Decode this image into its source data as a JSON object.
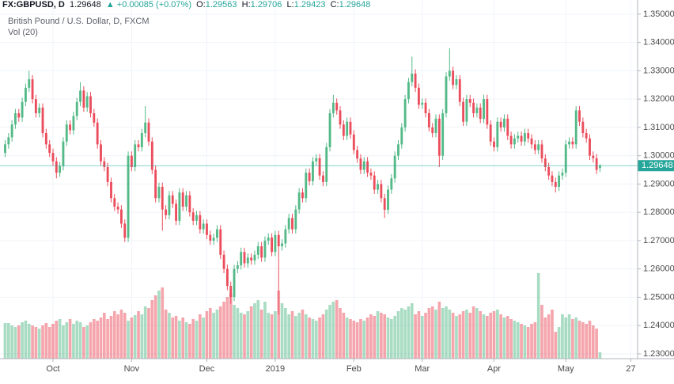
{
  "chart_data": {
    "type": "candlestick",
    "symbol": "FX:GBPUSD, D",
    "change": "▲ +0.00085 (+0.07%)",
    "ohlc_labels": [
      "O:",
      "H:",
      "L:",
      "C:"
    ],
    "subtitle": "British Pound / U.S. Dollar, D, FXCM",
    "volume_label": "Vol (20)",
    "up_color": "#53b987",
    "down_color": "#eb4d5c",
    "grid": true,
    "xlim": [
      -1.5,
      185
    ],
    "xticks": [
      {
        "value": 14,
        "label": "Oct"
      },
      {
        "value": 37,
        "label": "Nov"
      },
      {
        "value": 59,
        "label": "Dec"
      },
      {
        "value": 79,
        "label": "2019"
      },
      {
        "value": 102,
        "label": "Feb"
      },
      {
        "value": 122,
        "label": "Mar"
      },
      {
        "value": 143,
        "label": "Apr"
      },
      {
        "value": 164,
        "label": "May"
      },
      {
        "value": 183,
        "label": "27"
      }
    ],
    "ylim": [
      1.2283,
      1.355
    ],
    "yticks": [
      {
        "value": 1.23,
        "label": "1.23000"
      },
      {
        "value": 1.24,
        "label": "1.24000"
      },
      {
        "value": 1.25,
        "label": "1.25000"
      },
      {
        "value": 1.26,
        "label": "1.26000"
      },
      {
        "value": 1.27,
        "label": "1.27000"
      },
      {
        "value": 1.28,
        "label": "1.28000"
      },
      {
        "value": 1.29,
        "label": "1.29000"
      },
      {
        "value": 1.3,
        "label": "1.30000"
      },
      {
        "value": 1.31,
        "label": "1.31000"
      },
      {
        "value": 1.32,
        "label": "1.32000"
      },
      {
        "value": 1.33,
        "label": "1.33000"
      },
      {
        "value": 1.34,
        "label": "1.34000"
      },
      {
        "value": 1.35,
        "label": "1.35000"
      }
    ],
    "open": [
      1.301,
      1.304,
      1.3065,
      1.311,
      1.315,
      1.3135,
      1.319,
      1.324,
      1.327,
      1.32,
      1.315,
      1.317,
      1.308,
      1.304,
      1.301,
      1.298,
      1.294,
      1.2963,
      1.305,
      1.311,
      1.309,
      1.314,
      1.319,
      1.323,
      1.317,
      1.321,
      1.315,
      1.3117,
      1.304,
      1.298,
      1.296,
      1.2907,
      1.285,
      1.282,
      1.281,
      1.276,
      1.271,
      1.3,
      1.296,
      1.304,
      1.303,
      1.308,
      1.3117,
      1.305,
      1.295,
      1.285,
      1.289,
      1.281,
      1.279,
      1.286,
      1.283,
      1.277,
      1.287,
      1.282,
      1.286,
      1.28,
      1.277,
      1.279,
      1.274,
      1.276,
      1.272,
      1.27,
      1.271,
      1.274,
      1.265,
      1.26,
      1.254,
      1.2501,
      1.26,
      1.2613,
      1.266,
      1.262,
      1.264,
      1.263,
      1.265,
      1.268,
      1.264,
      1.27,
      1.2711,
      1.266,
      1.272,
      1.268,
      1.269,
      1.274,
      1.278,
      1.274,
      1.281,
      1.287,
      1.285,
      1.294,
      1.291,
      1.298,
      1.2991,
      1.293,
      1.2907,
      1.303,
      1.315,
      1.3187,
      1.316,
      1.311,
      1.307,
      1.312,
      1.3075,
      1.302,
      1.299,
      1.295,
      1.298,
      1.294,
      1.293,
      1.288,
      1.29,
      1.285,
      1.2809,
      1.288,
      1.292,
      1.3,
      1.304,
      1.31,
      1.32,
      1.326,
      1.329,
      1.324,
      1.318,
      1.3187,
      1.315,
      1.31,
      1.308,
      1.3131,
      1.3,
      1.315,
      1.328,
      1.33,
      1.325,
      1.327,
      1.319,
      1.312,
      1.32,
      1.3187,
      1.315,
      1.317,
      1.313,
      1.32,
      1.311,
      1.305,
      1.303,
      1.312,
      1.31,
      1.3131,
      1.307,
      1.304,
      1.3061,
      1.307,
      1.305,
      1.308,
      1.3061,
      1.304,
      1.302,
      1.304,
      1.299,
      1.296,
      1.293,
      1.2907,
      1.289,
      1.293,
      1.294,
      1.304,
      1.305,
      1.304,
      1.316,
      1.312,
      1.308,
      1.3061,
      1.3,
      1.2991,
      1.29563
    ],
    "high": [
      1.3055,
      1.308,
      1.3125,
      1.3165,
      1.3165,
      1.3205,
      1.3255,
      1.33,
      1.3285,
      1.3215,
      1.3185,
      1.3185,
      1.3095,
      1.3055,
      1.3025,
      1.2995,
      1.2978,
      1.3065,
      1.3125,
      1.3125,
      1.3155,
      1.3205,
      1.326,
      1.3245,
      1.3225,
      1.3225,
      1.3165,
      1.3132,
      1.3055,
      1.2995,
      1.2975,
      1.2922,
      1.2865,
      1.2835,
      1.2825,
      1.2775,
      1.3015,
      1.3015,
      1.3055,
      1.3055,
      1.3095,
      1.3175,
      1.3132,
      1.3065,
      1.2965,
      1.2905,
      1.2905,
      1.2825,
      1.2875,
      1.2875,
      1.2845,
      1.2885,
      1.2885,
      1.2875,
      1.2875,
      1.2815,
      1.2805,
      1.2805,
      1.2775,
      1.2775,
      1.2735,
      1.2725,
      1.2755,
      1.2755,
      1.2665,
      1.2615,
      1.2555,
      1.2615,
      1.2628,
      1.2675,
      1.2675,
      1.2655,
      1.2655,
      1.2665,
      1.2695,
      1.2695,
      1.2715,
      1.2726,
      1.2726,
      1.2735,
      1.2735,
      1.2705,
      1.2755,
      1.2795,
      1.2795,
      1.2825,
      1.2885,
      1.2885,
      1.2955,
      1.2955,
      1.2995,
      1.3006,
      1.3006,
      1.2945,
      1.3045,
      1.3165,
      1.3215,
      1.3202,
      1.3175,
      1.3125,
      1.3135,
      1.3135,
      1.309,
      1.3035,
      1.3005,
      1.2995,
      1.2995,
      1.2955,
      1.2945,
      1.2915,
      1.2915,
      1.2865,
      1.2895,
      1.2935,
      1.3015,
      1.3055,
      1.3115,
      1.3215,
      1.3275,
      1.335,
      1.3305,
      1.3255,
      1.3202,
      1.3202,
      1.3165,
      1.3115,
      1.3146,
      1.3146,
      1.3165,
      1.3295,
      1.338,
      1.3315,
      1.3285,
      1.3285,
      1.3205,
      1.3215,
      1.3215,
      1.3202,
      1.3185,
      1.3185,
      1.3215,
      1.3215,
      1.3125,
      1.3065,
      1.3135,
      1.3135,
      1.3146,
      1.3146,
      1.3085,
      1.3076,
      1.3085,
      1.3085,
      1.3095,
      1.3095,
      1.3076,
      1.3055,
      1.3055,
      1.3055,
      1.3005,
      1.2975,
      1.2945,
      1.2922,
      1.2945,
      1.2955,
      1.3055,
      1.3065,
      1.3065,
      1.3175,
      1.3175,
      1.3135,
      1.3095,
      1.3076,
      1.3015,
      1.3006,
      1.29706
    ],
    "low": [
      1.2995,
      1.3025,
      1.305,
      1.3095,
      1.312,
      1.312,
      1.3175,
      1.3225,
      1.3185,
      1.3135,
      1.3135,
      1.3065,
      1.3025,
      1.2995,
      1.2965,
      1.292,
      1.2925,
      1.2948,
      1.3035,
      1.3075,
      1.3075,
      1.3125,
      1.3175,
      1.3155,
      1.3155,
      1.3135,
      1.3102,
      1.3025,
      1.2965,
      1.2945,
      1.2892,
      1.2835,
      1.2805,
      1.2795,
      1.2745,
      1.2695,
      1.2695,
      1.2945,
      1.2945,
      1.3015,
      1.3015,
      1.3065,
      1.3035,
      1.2935,
      1.2835,
      1.2835,
      1.2735,
      1.2775,
      1.2775,
      1.2815,
      1.2755,
      1.2755,
      1.2805,
      1.2805,
      1.2785,
      1.2755,
      1.2755,
      1.2725,
      1.2725,
      1.2705,
      1.2685,
      1.2685,
      1.2695,
      1.2635,
      1.2585,
      1.2525,
      1.2477,
      1.2486,
      1.2585,
      1.2598,
      1.2605,
      1.2605,
      1.2615,
      1.2615,
      1.2635,
      1.2625,
      1.2625,
      1.2685,
      1.2645,
      1.2645,
      1.2438,
      1.2665,
      1.2675,
      1.2725,
      1.2725,
      1.2725,
      1.2795,
      1.2835,
      1.2835,
      1.2895,
      1.2895,
      1.2965,
      1.2915,
      1.2892,
      1.2892,
      1.3015,
      1.3135,
      1.3145,
      1.3095,
      1.3055,
      1.3055,
      1.306,
      1.3005,
      1.2975,
      1.2935,
      1.2935,
      1.2925,
      1.2915,
      1.2865,
      1.2865,
      1.2835,
      1.278,
      1.2794,
      1.2865,
      1.2905,
      1.2985,
      1.3025,
      1.3085,
      1.3185,
      1.3245,
      1.3225,
      1.3165,
      1.3165,
      1.3135,
      1.3085,
      1.3065,
      1.3065,
      1.296,
      1.2985,
      1.3135,
      1.3265,
      1.3235,
      1.3235,
      1.3175,
      1.3105,
      1.3105,
      1.3172,
      1.3135,
      1.3135,
      1.3115,
      1.3115,
      1.3095,
      1.3035,
      1.3015,
      1.3015,
      1.3085,
      1.3085,
      1.3055,
      1.3025,
      1.3025,
      1.3046,
      1.3035,
      1.3035,
      1.3046,
      1.3025,
      1.3005,
      1.3005,
      1.2975,
      1.2945,
      1.2915,
      1.2892,
      1.287,
      1.2875,
      1.2915,
      1.2925,
      1.3025,
      1.3025,
      1.3025,
      1.3105,
      1.3065,
      1.3046,
      1.2985,
      1.2976,
      1.2935,
      1.29423
    ],
    "close": [
      1.304,
      1.3065,
      1.311,
      1.315,
      1.3135,
      1.319,
      1.324,
      1.327,
      1.32,
      1.315,
      1.317,
      1.308,
      1.304,
      1.301,
      1.298,
      1.294,
      1.2963,
      1.305,
      1.311,
      1.309,
      1.314,
      1.319,
      1.323,
      1.317,
      1.321,
      1.315,
      1.3117,
      1.304,
      1.298,
      1.296,
      1.2907,
      1.285,
      1.282,
      1.281,
      1.276,
      1.271,
      1.3,
      1.296,
      1.304,
      1.303,
      1.308,
      1.3117,
      1.305,
      1.295,
      1.285,
      1.289,
      1.281,
      1.279,
      1.286,
      1.283,
      1.277,
      1.287,
      1.282,
      1.286,
      1.28,
      1.277,
      1.279,
      1.274,
      1.276,
      1.272,
      1.27,
      1.271,
      1.274,
      1.265,
      1.26,
      1.254,
      1.2501,
      1.26,
      1.2613,
      1.266,
      1.262,
      1.264,
      1.263,
      1.265,
      1.268,
      1.264,
      1.27,
      1.2711,
      1.266,
      1.272,
      1.268,
      1.269,
      1.274,
      1.278,
      1.274,
      1.281,
      1.287,
      1.285,
      1.294,
      1.291,
      1.298,
      1.2991,
      1.293,
      1.2907,
      1.303,
      1.315,
      1.3187,
      1.316,
      1.311,
      1.307,
      1.312,
      1.3075,
      1.302,
      1.299,
      1.295,
      1.298,
      1.294,
      1.293,
      1.288,
      1.29,
      1.285,
      1.2809,
      1.288,
      1.292,
      1.3,
      1.304,
      1.31,
      1.32,
      1.326,
      1.329,
      1.324,
      1.318,
      1.3187,
      1.315,
      1.31,
      1.308,
      1.3131,
      1.3,
      1.315,
      1.328,
      1.33,
      1.325,
      1.327,
      1.319,
      1.312,
      1.32,
      1.3187,
      1.315,
      1.317,
      1.313,
      1.32,
      1.311,
      1.305,
      1.303,
      1.312,
      1.31,
      1.3131,
      1.307,
      1.304,
      1.3061,
      1.307,
      1.305,
      1.308,
      1.3061,
      1.304,
      1.302,
      1.304,
      1.299,
      1.296,
      1.293,
      1.2907,
      1.289,
      1.293,
      1.294,
      1.304,
      1.305,
      1.304,
      1.316,
      1.312,
      1.308,
      1.3061,
      1.3,
      1.2991,
      1.295,
      1.29648
    ],
    "volume": [
      45,
      45,
      42,
      40,
      42,
      46,
      48,
      44,
      42,
      40,
      38,
      42,
      45,
      40,
      44,
      48,
      50,
      42,
      46,
      50,
      44,
      48,
      46,
      40,
      42,
      46,
      50,
      48,
      52,
      58,
      50,
      54,
      60,
      56,
      62,
      58,
      48,
      52,
      55,
      60,
      56,
      66,
      64,
      74,
      80,
      86,
      90,
      62,
      58,
      52,
      54,
      48,
      52,
      46,
      44,
      50,
      48,
      56,
      52,
      60,
      64,
      58,
      62,
      66,
      72,
      78,
      82,
      68,
      64,
      58,
      56,
      60,
      66,
      70,
      74,
      62,
      72,
      58,
      56,
      60,
      86,
      70,
      64,
      56,
      60,
      54,
      58,
      62,
      56,
      52,
      50,
      48,
      52,
      56,
      62,
      68,
      72,
      74,
      64,
      58,
      52,
      50,
      48,
      46,
      50,
      48,
      52,
      56,
      54,
      60,
      58,
      56,
      52,
      50,
      54,
      60,
      64,
      62,
      66,
      70,
      56,
      60,
      54,
      58,
      64,
      66,
      62,
      72,
      64,
      66,
      62,
      58,
      54,
      56,
      60,
      62,
      58,
      66,
      64,
      60,
      56,
      54,
      58,
      60,
      62,
      56,
      52,
      54,
      50,
      48,
      46,
      44,
      42,
      40,
      44,
      46,
      108,
      68,
      52,
      56,
      62,
      34,
      40,
      56,
      52,
      56,
      50,
      52,
      48,
      46,
      44,
      48,
      42,
      38,
      8
    ]
  }
}
